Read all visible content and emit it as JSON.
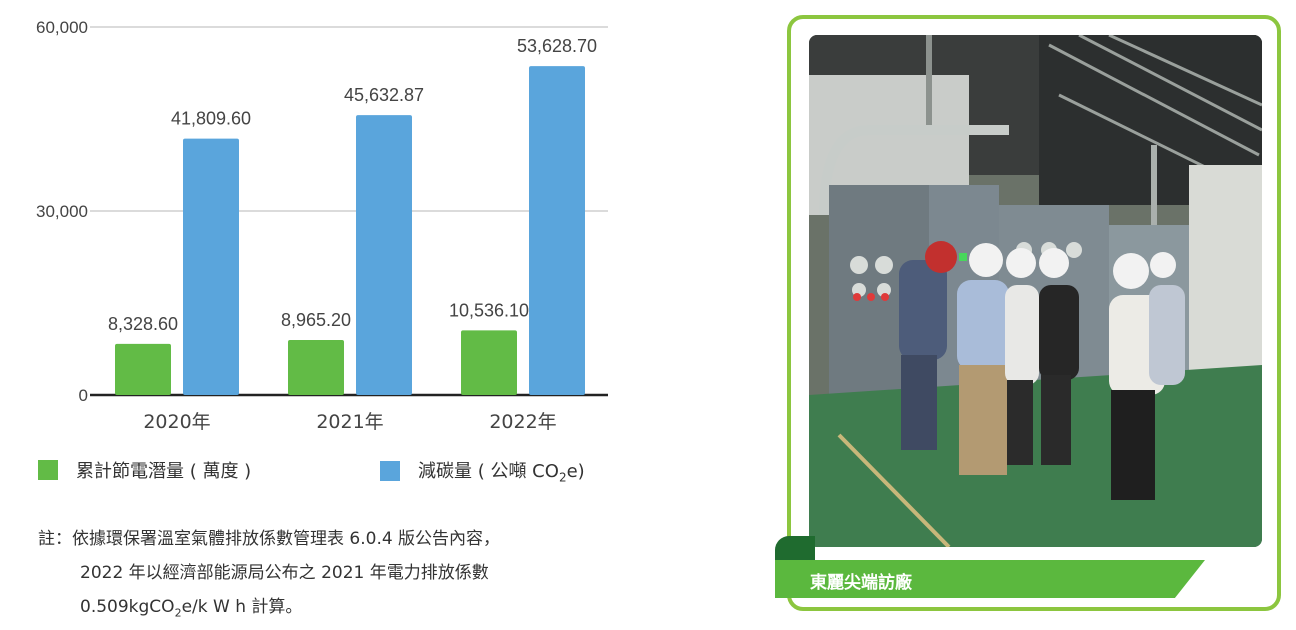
{
  "chart_data": {
    "type": "bar",
    "categories": [
      "2020年",
      "2021年",
      "2022年"
    ],
    "series": [
      {
        "name": "累計節電潛量 ( 萬度 )",
        "values": [
          8328.6,
          8965.2,
          10536.1
        ],
        "labels": [
          "8,328.60",
          "8,965.20",
          "10,536.10"
        ],
        "color": "#62bb46"
      },
      {
        "name": "減碳量 ( 公噸 CO2e)",
        "values": [
          41809.6,
          45632.87,
          53628.7
        ],
        "labels": [
          "41,809.60",
          "45,632.87",
          "53,628.70"
        ],
        "color": "#5aa5dc"
      }
    ],
    "yticks": [
      0,
      30000,
      60000
    ],
    "ytick_labels": [
      "0",
      "30,000",
      "60,000"
    ],
    "ylim": [
      0,
      60000
    ],
    "grid": true,
    "legend_position": "bottom"
  },
  "legend": {
    "green_prefix": "累計節電潛量 ( 萬度 )",
    "blue_prefix": "減碳量 ( 公噸 CO",
    "blue_sub": "2",
    "blue_suffix": "e)"
  },
  "note": {
    "line1": "註：依據環保署溫室氣體排放係數管理表 6.0.4 版公告內容，",
    "line2": "2022 年以經濟部能源局公布之 2021 年電力排放係數",
    "line3_prefix": "0.509kgCO",
    "line3_sub": "2",
    "line3_suffix": "e/k W h 計算。"
  },
  "photo": {
    "caption": "東麗尖端訪廠",
    "icon": "factory-visit-photo"
  }
}
